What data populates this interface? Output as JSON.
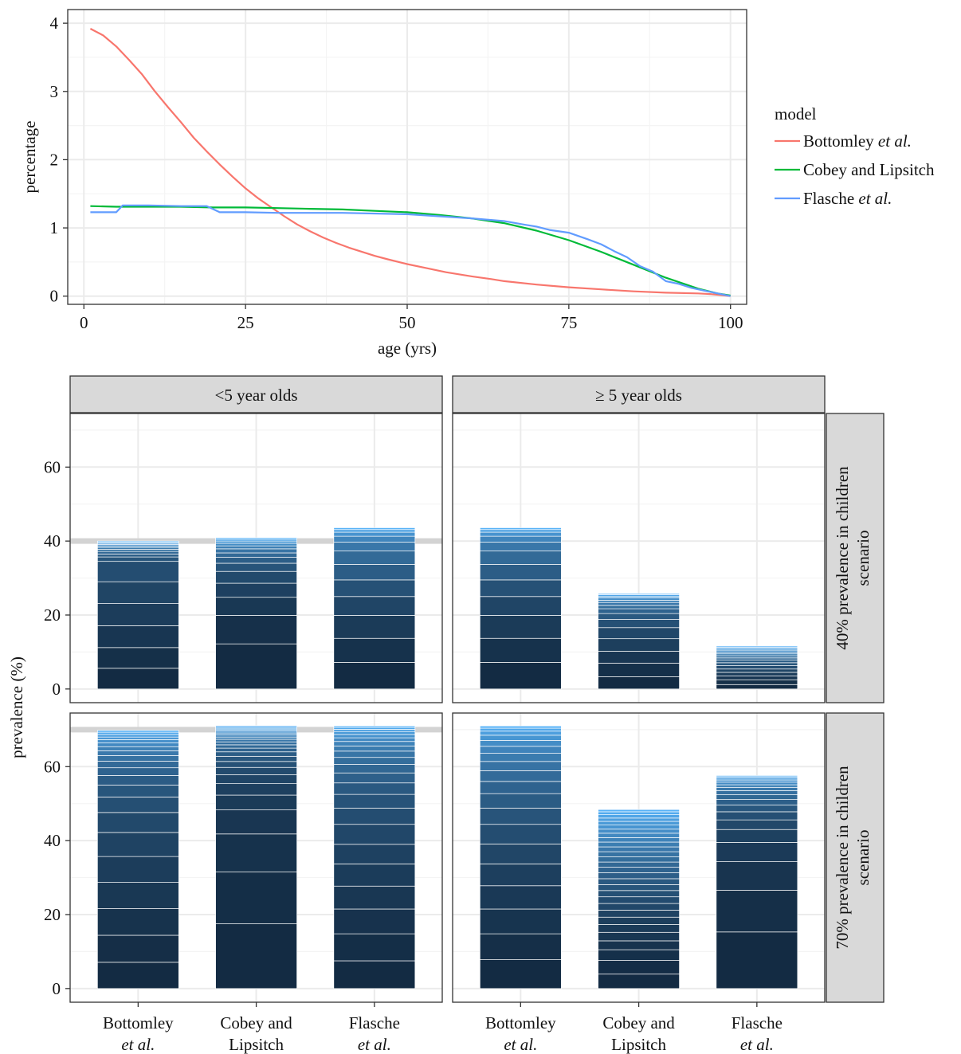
{
  "colors": {
    "Bottomley": "#F8766D",
    "Cobey": "#00BA38",
    "Flasche": "#619CFF",
    "panel_grid_major": "#EBEBEB",
    "panel_grid_minor": "#F4F4F4",
    "strip_fill": "#D9D9D9",
    "bar_dark": "#132B43",
    "bar_light": "#56B1F7",
    "reference_line": "#D3D3D3"
  },
  "chart_data": [
    {
      "type": "line",
      "xlabel": "age (yrs)",
      "ylabel": "percentage",
      "xlim": [
        0,
        100
      ],
      "ylim": [
        0,
        4
      ],
      "x_ticks": [
        "0",
        "25",
        "50",
        "75",
        "100"
      ],
      "y_ticks": [
        "0",
        "1",
        "2",
        "3",
        "4"
      ],
      "grid": true,
      "legend": {
        "title": "model",
        "position": "right",
        "entries": [
          {
            "main": "Bottomley ",
            "italic": "et al."
          },
          {
            "main": "Cobey and Lipsitch",
            "italic": ""
          },
          {
            "main": "Flasche ",
            "italic": "et al."
          }
        ]
      },
      "series": [
        {
          "name": "Bottomley et al.",
          "color_key": "Bottomley",
          "points": [
            [
              1,
              3.92
            ],
            [
              3,
              3.82
            ],
            [
              5,
              3.66
            ],
            [
              7,
              3.46
            ],
            [
              9,
              3.25
            ],
            [
              11,
              3.0
            ],
            [
              13,
              2.77
            ],
            [
              15,
              2.55
            ],
            [
              17,
              2.32
            ],
            [
              19,
              2.12
            ],
            [
              21,
              1.93
            ],
            [
              23,
              1.75
            ],
            [
              25,
              1.58
            ],
            [
              27,
              1.43
            ],
            [
              29,
              1.3
            ],
            [
              31,
              1.17
            ],
            [
              33,
              1.05
            ],
            [
              35,
              0.95
            ],
            [
              37,
              0.86
            ],
            [
              39,
              0.78
            ],
            [
              41,
              0.71
            ],
            [
              43,
              0.65
            ],
            [
              45,
              0.59
            ],
            [
              47,
              0.54
            ],
            [
              50,
              0.47
            ],
            [
              53,
              0.41
            ],
            [
              56,
              0.35
            ],
            [
              60,
              0.29
            ],
            [
              63,
              0.25
            ],
            [
              65,
              0.22
            ],
            [
              70,
              0.17
            ],
            [
              75,
              0.13
            ],
            [
              80,
              0.1
            ],
            [
              85,
              0.07
            ],
            [
              90,
              0.05
            ],
            [
              95,
              0.04
            ],
            [
              97,
              0.03
            ],
            [
              100,
              0.0
            ]
          ]
        },
        {
          "name": "Cobey and Lipsitch",
          "color_key": "Cobey",
          "points": [
            [
              1,
              1.32
            ],
            [
              5,
              1.31
            ],
            [
              10,
              1.31
            ],
            [
              15,
              1.31
            ],
            [
              20,
              1.3
            ],
            [
              25,
              1.3
            ],
            [
              30,
              1.29
            ],
            [
              35,
              1.28
            ],
            [
              40,
              1.27
            ],
            [
              45,
              1.25
            ],
            [
              50,
              1.23
            ],
            [
              55,
              1.19
            ],
            [
              60,
              1.14
            ],
            [
              65,
              1.07
            ],
            [
              70,
              0.96
            ],
            [
              75,
              0.82
            ],
            [
              80,
              0.65
            ],
            [
              85,
              0.46
            ],
            [
              90,
              0.27
            ],
            [
              95,
              0.11
            ],
            [
              98,
              0.04
            ],
            [
              100,
              0.01
            ]
          ]
        },
        {
          "name": "Flasche et al.",
          "color_key": "Flasche",
          "points": [
            [
              1,
              1.23
            ],
            [
              5,
              1.23
            ],
            [
              6,
              1.33
            ],
            [
              10,
              1.33
            ],
            [
              15,
              1.32
            ],
            [
              19,
              1.32
            ],
            [
              21,
              1.23
            ],
            [
              25,
              1.23
            ],
            [
              30,
              1.22
            ],
            [
              40,
              1.22
            ],
            [
              50,
              1.2
            ],
            [
              55,
              1.17
            ],
            [
              60,
              1.14
            ],
            [
              65,
              1.1
            ],
            [
              68,
              1.05
            ],
            [
              70,
              1.02
            ],
            [
              72,
              0.97
            ],
            [
              75,
              0.93
            ],
            [
              78,
              0.83
            ],
            [
              80,
              0.76
            ],
            [
              82,
              0.66
            ],
            [
              84,
              0.57
            ],
            [
              86,
              0.44
            ],
            [
              88,
              0.36
            ],
            [
              90,
              0.22
            ],
            [
              92,
              0.18
            ],
            [
              94,
              0.12
            ],
            [
              96,
              0.08
            ],
            [
              100,
              0.0
            ]
          ]
        }
      ]
    },
    {
      "type": "bar",
      "stacked": true,
      "ylabel": "prevalence (%)",
      "ylim": [
        0,
        75
      ],
      "y_ticks": [
        "0",
        "20",
        "40",
        "60"
      ],
      "grid": true,
      "column_strips": [
        "<5 year olds",
        "≥ 5 year olds"
      ],
      "row_strips": [
        [
          "40% prevalence in children",
          "scenario"
        ],
        [
          "70% prevalence in children",
          "scenario"
        ]
      ],
      "categories": [
        {
          "line1": "Bottomley",
          "line2": "et al.",
          "line2_italic": true
        },
        {
          "line1": "Cobey and",
          "line2": "Lipsitch",
          "line2_italic": false
        },
        {
          "line1": "Flasche",
          "line2": "et al.",
          "line2_italic": true
        }
      ],
      "reference_lines": [
        40,
        70
      ],
      "panels": [
        {
          "row": 0,
          "col": 0,
          "bars": [
            [
              5.6,
              11.2,
              17.1,
              23.1,
              29.0,
              34.5,
              35.7,
              36.5,
              37.2,
              37.8,
              38.3,
              38.7,
              39.1,
              39.4,
              39.7,
              40.0
            ],
            [
              12.2,
              19.9,
              24.8,
              28.6,
              31.8,
              34.0,
              35.6,
              36.8,
              37.9,
              38.7,
              39.4,
              40.0,
              40.5,
              40.9
            ],
            [
              7.2,
              13.7,
              19.9,
              25.0,
              29.5,
              33.7,
              37.3,
              39.7,
              41.3,
              42.4,
              43.1,
              43.6
            ]
          ]
        },
        {
          "row": 0,
          "col": 1,
          "bars": [
            [
              7.2,
              13.7,
              19.9,
              25.0,
              29.5,
              33.7,
              37.3,
              39.7,
              41.3,
              42.4,
              43.1,
              43.6
            ],
            [
              3.3,
              7.0,
              10.2,
              13.6,
              16.6,
              18.8,
              20.4,
              21.7,
              22.6,
              23.4,
              24.0,
              24.6,
              25.0,
              25.5,
              25.8
            ],
            [
              1.2,
              2.5,
              3.5,
              4.5,
              5.4,
              6.3,
              7.1,
              7.8,
              8.4,
              9.0,
              9.5,
              10.0,
              10.5,
              10.9,
              11.3,
              11.6
            ]
          ]
        },
        {
          "row": 1,
          "col": 0,
          "bars": [
            [
              7.1,
              14.4,
              21.6,
              28.7,
              35.7,
              42.2,
              47.6,
              51.8,
              55.0,
              57.6,
              59.7,
              61.5,
              63.0,
              64.3,
              65.4,
              66.4,
              67.3,
              68.0,
              68.7,
              69.3,
              69.8
            ],
            [
              17.5,
              31.5,
              41.8,
              48.3,
              52.3,
              55.4,
              57.8,
              59.8,
              61.4,
              62.8,
              64.0,
              65.0,
              65.9,
              66.7,
              67.4,
              68.0,
              68.6,
              69.1,
              69.6,
              70.0,
              70.4,
              70.8,
              71.1
            ],
            [
              7.5,
              14.8,
              21.5,
              27.7,
              33.7,
              39.0,
              44.4,
              48.8,
              52.5,
              55.6,
              58.3,
              60.6,
              62.5,
              64.2,
              65.6,
              66.8,
              67.8,
              68.7,
              69.5,
              70.1,
              70.6,
              71.0
            ]
          ]
        },
        {
          "row": 1,
          "col": 1,
          "bars": [
            [
              7.8,
              14.8,
              21.5,
              27.8,
              33.7,
              39.1,
              44.4,
              48.8,
              52.7,
              56.0,
              58.9,
              61.4,
              63.6,
              65.5,
              67.1,
              68.5,
              69.6,
              70.4,
              71.0
            ],
            [
              3.9,
              7.6,
              10.5,
              12.9,
              15.2,
              17.3,
              19.3,
              21.2,
              23.0,
              24.8,
              26.5,
              28.1,
              29.7,
              31.3,
              32.8,
              34.2,
              35.6,
              37.0,
              38.3,
              39.6,
              40.8,
              42.0,
              43.1,
              44.2,
              45.2,
              46.1,
              47.0,
              47.8,
              48.4
            ],
            [
              15.3,
              26.6,
              34.3,
              39.5,
              43.0,
              45.6,
              47.8,
              49.6,
              51.1,
              52.4,
              53.5,
              54.4,
              55.1,
              55.8,
              56.4,
              56.9,
              57.3,
              57.6
            ]
          ]
        }
      ]
    }
  ]
}
